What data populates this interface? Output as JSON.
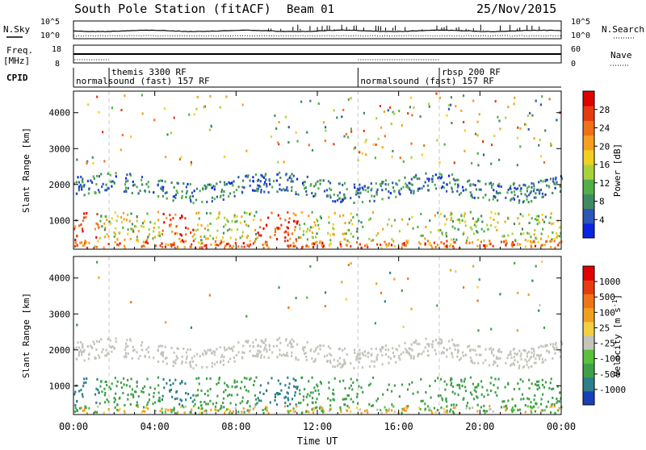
{
  "header": {
    "title": "South Pole Station (fitACF)",
    "beam": "Beam 01",
    "date": "25/Nov/2015"
  },
  "top_strips": {
    "nsky_label": "N.Sky",
    "nsky_ticks": [
      "10^5",
      "10^0"
    ],
    "nsearch_label": "N.Search",
    "nsearch_ticks": [
      "10^5",
      "10^0"
    ],
    "freq_label": "Freq.",
    "freq_unit": "[MHz]",
    "freq_ticks": [
      "18",
      "8"
    ],
    "nave_label": "Nave",
    "nave_ticks": [
      "60",
      "0"
    ],
    "cpid_label": "CPID",
    "cpid_segments": [
      {
        "label": "normalsound (fast) 157 RF",
        "start_hour": 0,
        "row": "low"
      },
      {
        "label": "themis 3300 RF",
        "start_hour": 1.75,
        "row": "high"
      },
      {
        "label": "normalsound (fast) 157 RF",
        "start_hour": 14,
        "row": "low"
      },
      {
        "label": "rbsp 200 RF",
        "start_hour": 18,
        "row": "high"
      }
    ],
    "cpid_boundaries_hours": [
      1.75,
      14,
      18
    ]
  },
  "chart_data": [
    {
      "type": "heatmap",
      "name": "power",
      "ylabel": "Slant Range [km]",
      "ylim": [
        200,
        4600
      ],
      "yticks": [
        1000,
        2000,
        3000,
        4000
      ],
      "xlim_hours": [
        0,
        24
      ],
      "colorbar": {
        "label": "Power [dB]",
        "ticks": [
          "28",
          "24",
          "20",
          "16",
          "12",
          "8",
          "4"
        ],
        "colors": [
          "#0b24e0",
          "#2e55b8",
          "#3f8a62",
          "#52b04a",
          "#a8d23c",
          "#f0d020",
          "#f5a020",
          "#f07018",
          "#e83a10",
          "#e00000"
        ],
        "range": [
          0,
          32
        ]
      }
    },
    {
      "type": "heatmap",
      "name": "velocity",
      "ylabel": "Slant Range [km]",
      "ylim": [
        200,
        4600
      ],
      "yticks": [
        1000,
        2000,
        3000,
        4000
      ],
      "xlim_hours": [
        0,
        24
      ],
      "xlabel": "Time UT",
      "xticks": [
        "00:00",
        "04:00",
        "08:00",
        "12:00",
        "16:00",
        "20:00",
        "00:00"
      ],
      "colorbar": {
        "label": "Velocity [m s^-1]",
        "ticks": [
          "1000",
          "500",
          "100",
          "25",
          "-25",
          "-100",
          "-500",
          "-1000"
        ],
        "colors": [
          "#1a3fb8",
          "#2e7f8a",
          "#3fa04a",
          "#58c23a",
          "#c4c4bc",
          "#f2d040",
          "#f0a020",
          "#f07418",
          "#e83a10",
          "#e00000"
        ]
      }
    }
  ]
}
